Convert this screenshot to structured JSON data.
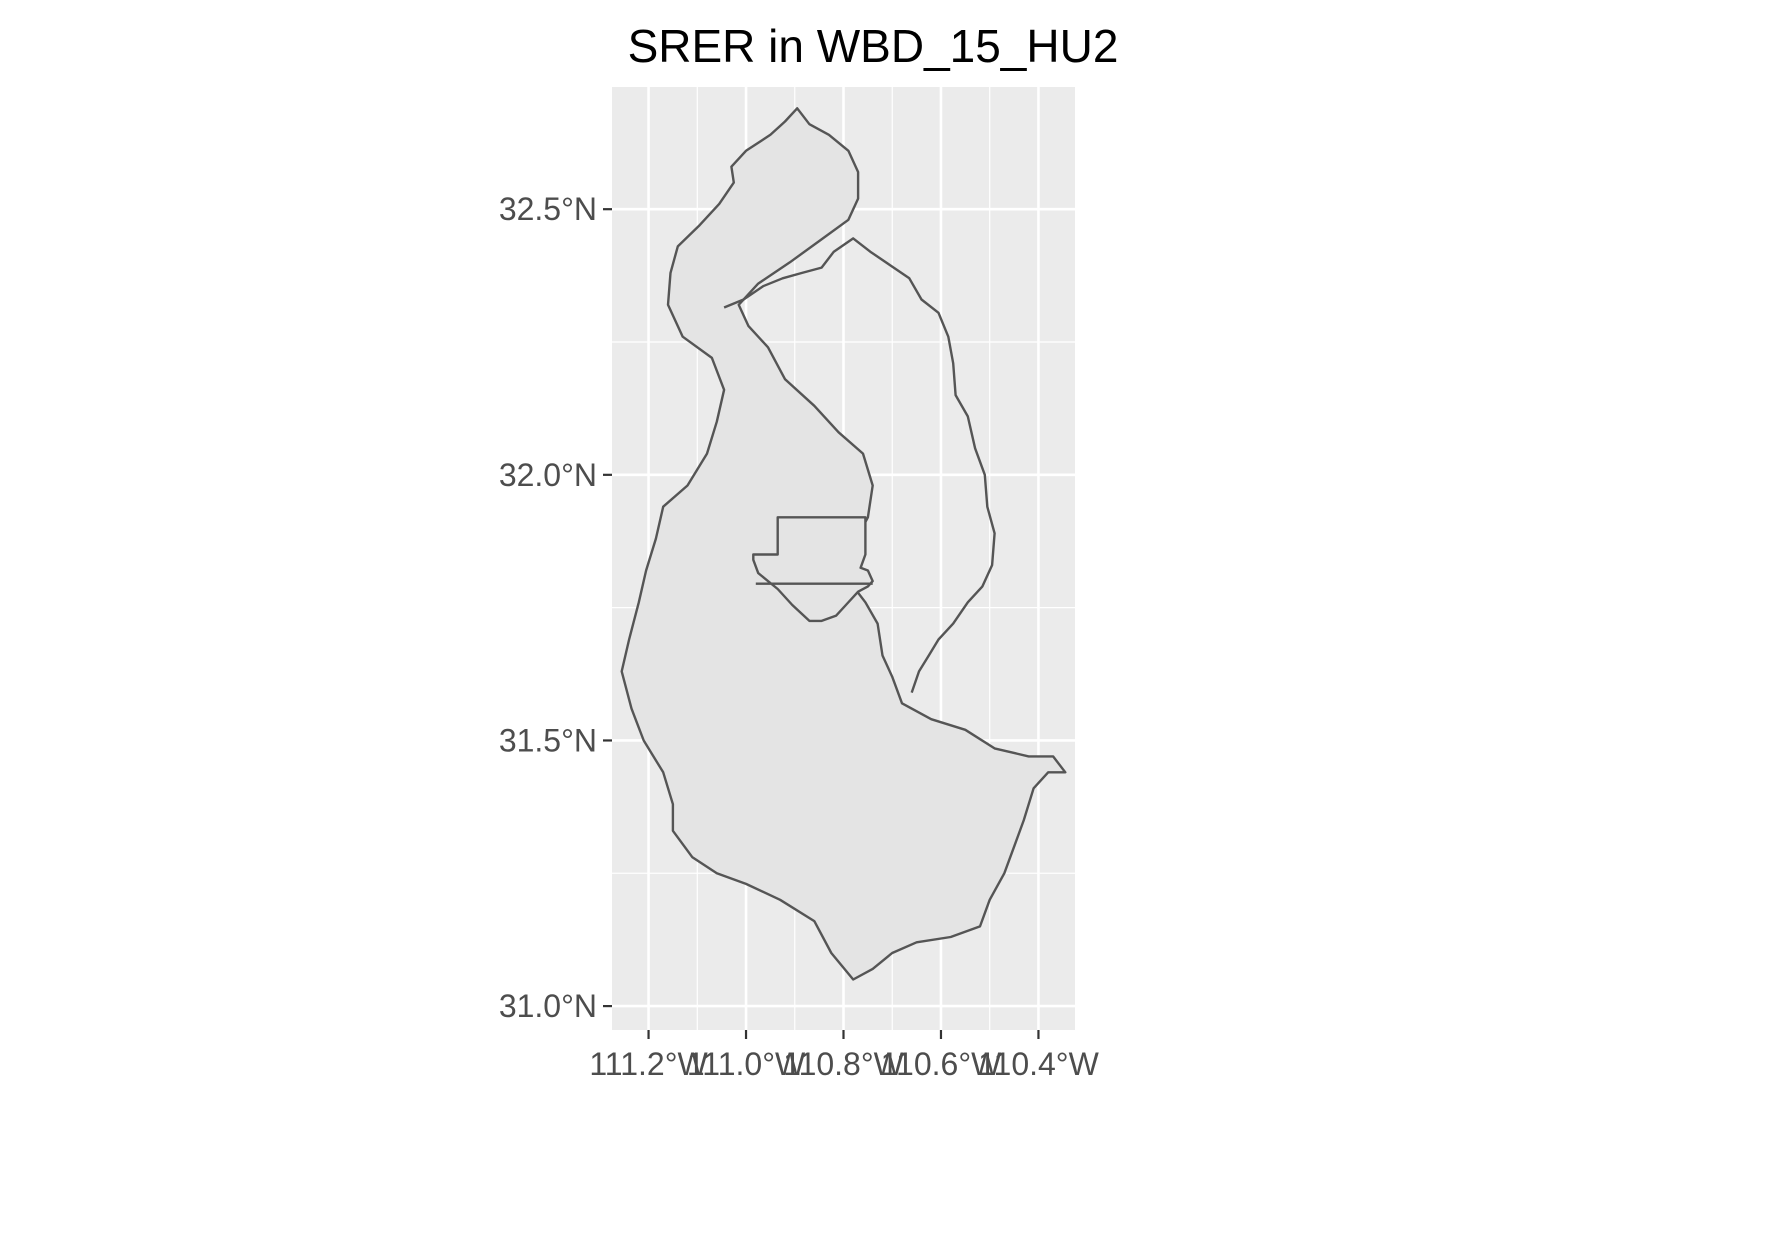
{
  "title": "SRER in WBD_15_HU2",
  "colors": {
    "panel_background": "#ebebeb",
    "grid": "#ffffff",
    "polygon_fill": "#e4e4e4",
    "polygon_stroke": "#555555",
    "tick_text": "#4d4d4d",
    "tick_mark": "#333333"
  },
  "chart_data": {
    "type": "map",
    "title": "SRER in WBD_15_HU2",
    "xlim": [
      -111.275,
      -110.325
    ],
    "ylim": [
      30.955,
      32.73
    ],
    "grid": true,
    "x_ticks": [
      {
        "value": -111.2,
        "label": "111.2°W"
      },
      {
        "value": -111.0,
        "label": "111.0°W"
      },
      {
        "value": -110.8,
        "label": "110.8°W"
      },
      {
        "value": -110.6,
        "label": "110.6°W"
      },
      {
        "value": -110.4,
        "label": "110.4°W"
      }
    ],
    "y_ticks": [
      {
        "value": 32.5,
        "label": "32.5°N"
      },
      {
        "value": 32.0,
        "label": "32.0°N"
      },
      {
        "value": 31.5,
        "label": "31.5°N"
      },
      {
        "value": 31.0,
        "label": "31.0°N"
      }
    ],
    "layers": [
      {
        "id": "watershed-outline",
        "coords": [
          [
            -110.895,
            32.69
          ],
          [
            -110.87,
            32.66
          ],
          [
            -110.83,
            32.64
          ],
          [
            -110.79,
            32.61
          ],
          [
            -110.77,
            32.57
          ],
          [
            -110.77,
            32.52
          ],
          [
            -110.79,
            32.48
          ],
          [
            -110.85,
            32.44
          ],
          [
            -110.91,
            32.4
          ],
          [
            -110.975,
            32.36
          ],
          [
            -111.015,
            32.32
          ],
          [
            -110.995,
            32.28
          ],
          [
            -110.955,
            32.24
          ],
          [
            -110.92,
            32.18
          ],
          [
            -110.86,
            32.13
          ],
          [
            -110.81,
            32.08
          ],
          [
            -110.76,
            32.04
          ],
          [
            -110.74,
            31.98
          ],
          [
            -110.75,
            31.92
          ],
          [
            -110.785,
            31.86
          ],
          [
            -110.81,
            31.81
          ],
          [
            -110.78,
            31.79
          ],
          [
            -110.755,
            31.76
          ],
          [
            -110.73,
            31.72
          ],
          [
            -110.72,
            31.66
          ],
          [
            -110.7,
            31.62
          ],
          [
            -110.68,
            31.57
          ],
          [
            -110.62,
            31.54
          ],
          [
            -110.55,
            31.52
          ],
          [
            -110.49,
            31.485
          ],
          [
            -110.42,
            31.47
          ],
          [
            -110.37,
            31.47
          ],
          [
            -110.345,
            31.44
          ],
          [
            -110.38,
            31.44
          ],
          [
            -110.41,
            31.41
          ],
          [
            -110.43,
            31.35
          ],
          [
            -110.45,
            31.3
          ],
          [
            -110.47,
            31.25
          ],
          [
            -110.5,
            31.2
          ],
          [
            -110.52,
            31.15
          ],
          [
            -110.58,
            31.13
          ],
          [
            -110.65,
            31.12
          ],
          [
            -110.7,
            31.1
          ],
          [
            -110.74,
            31.07
          ],
          [
            -110.78,
            31.05
          ],
          [
            -110.825,
            31.1
          ],
          [
            -110.86,
            31.16
          ],
          [
            -110.93,
            31.2
          ],
          [
            -111.0,
            31.23
          ],
          [
            -111.06,
            31.25
          ],
          [
            -111.11,
            31.28
          ],
          [
            -111.15,
            31.33
          ],
          [
            -111.15,
            31.38
          ],
          [
            -111.17,
            31.44
          ],
          [
            -111.21,
            31.5
          ],
          [
            -111.235,
            31.56
          ],
          [
            -111.255,
            31.63
          ],
          [
            -111.24,
            31.69
          ],
          [
            -111.22,
            31.76
          ],
          [
            -111.205,
            31.82
          ],
          [
            -111.185,
            31.88
          ],
          [
            -111.17,
            31.94
          ],
          [
            -111.12,
            31.98
          ],
          [
            -111.08,
            32.04
          ],
          [
            -111.06,
            32.1
          ],
          [
            -111.045,
            32.16
          ],
          [
            -111.07,
            32.22
          ],
          [
            -111.13,
            32.26
          ],
          [
            -111.16,
            32.32
          ],
          [
            -111.155,
            32.38
          ],
          [
            -111.14,
            32.43
          ],
          [
            -111.095,
            32.47
          ],
          [
            -111.055,
            32.51
          ],
          [
            -111.025,
            32.55
          ],
          [
            -111.03,
            32.58
          ],
          [
            -111.0,
            32.61
          ],
          [
            -110.95,
            32.64
          ],
          [
            -110.92,
            32.665
          ]
        ]
      },
      {
        "id": "inner-subbasin-boundary",
        "coords": [
          [
            -111.045,
            32.315
          ],
          [
            -111.005,
            32.33
          ],
          [
            -110.965,
            32.355
          ],
          [
            -110.925,
            32.37
          ],
          [
            -110.885,
            32.38
          ],
          [
            -110.845,
            32.39
          ],
          [
            -110.82,
            32.42
          ],
          [
            -110.78,
            32.445
          ],
          [
            -110.745,
            32.42
          ],
          [
            -110.705,
            32.395
          ],
          [
            -110.665,
            32.37
          ],
          [
            -110.64,
            32.33
          ],
          [
            -110.605,
            32.305
          ],
          [
            -110.585,
            32.26
          ],
          [
            -110.575,
            32.21
          ],
          [
            -110.57,
            32.15
          ],
          [
            -110.545,
            32.11
          ],
          [
            -110.53,
            32.05
          ],
          [
            -110.51,
            32.0
          ],
          [
            -110.505,
            31.94
          ],
          [
            -110.49,
            31.89
          ],
          [
            -110.495,
            31.83
          ],
          [
            -110.515,
            31.79
          ],
          [
            -110.545,
            31.76
          ],
          [
            -110.575,
            31.72
          ],
          [
            -110.605,
            31.69
          ],
          [
            -110.625,
            31.66
          ],
          [
            -110.645,
            31.63
          ],
          [
            -110.66,
            31.59
          ]
        ]
      },
      {
        "id": "srer-boundary",
        "coords": [
          [
            -110.935,
            31.92
          ],
          [
            -110.755,
            31.92
          ],
          [
            -110.755,
            31.85
          ],
          [
            -110.765,
            31.825
          ],
          [
            -110.75,
            31.82
          ],
          [
            -110.74,
            31.8
          ],
          [
            -110.75,
            31.79
          ],
          [
            -110.77,
            31.78
          ],
          [
            -110.795,
            31.755
          ],
          [
            -110.815,
            31.735
          ],
          [
            -110.845,
            31.725
          ],
          [
            -110.87,
            31.725
          ],
          [
            -110.905,
            31.755
          ],
          [
            -110.935,
            31.785
          ],
          [
            -110.975,
            31.815
          ],
          [
            -110.985,
            31.84
          ],
          [
            -110.985,
            31.85
          ],
          [
            -110.935,
            31.85
          ]
        ]
      },
      {
        "id": "srer-inner-line",
        "coords": [
          [
            -110.98,
            31.795
          ],
          [
            -110.74,
            31.795
          ]
        ]
      }
    ]
  }
}
